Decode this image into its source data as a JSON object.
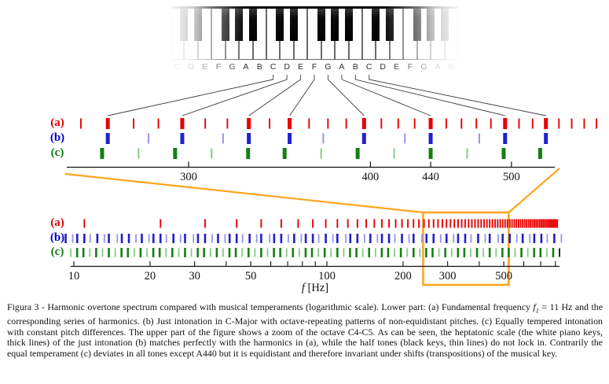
{
  "figure": {
    "keyboard": {
      "letters": [
        "C",
        "D",
        "E",
        "F",
        "G",
        "A",
        "B",
        "C",
        "D",
        "E",
        "F",
        "G",
        "A",
        "B",
        "C",
        "D",
        "E",
        "F",
        "G",
        "A",
        "B"
      ],
      "black_key_positions_in_octave": [
        1,
        2,
        4,
        5,
        6
      ],
      "octaves": 3
    },
    "row_labels": {
      "a": "(a)",
      "b": "(b)",
      "c": "(c)"
    },
    "colors": {
      "harmonic_red": "#e80000",
      "just_blue_thick": "#2020cc",
      "just_blue_thin": "#9595e8",
      "equal_green_thick": "#148014",
      "equal_green_thin": "#84ca84",
      "zoom_box_orange": "#ffa51e",
      "axis_black": "#111111",
      "final_black_tick": "#111111"
    },
    "xlabel_f": "f",
    "xlabel_unit": " [Hz]"
  },
  "chart_data": [
    {
      "panel": "upper_zoom_octave_C4_C5",
      "type": "scatter",
      "x_scale": "log",
      "x_range_hz": [
        247,
        583
      ],
      "x_axis_tick_labels": [
        "300",
        "400",
        "440",
        "500"
      ],
      "x_axis_tick_values": [
        300,
        400,
        440,
        500
      ],
      "series": [
        {
          "name": "(a) harmonics of 11 Hz",
          "values": [
            253,
            264,
            275,
            286,
            297,
            308,
            319,
            330,
            341,
            352,
            363,
            374,
            385,
            396,
            407,
            418,
            429,
            440,
            451,
            462,
            473,
            484,
            495,
            506,
            517,
            528,
            539,
            550,
            561,
            572,
            583
          ],
          "emphasized_white_key_matches": [
            264,
            297,
            330,
            352,
            396,
            440,
            495,
            528
          ]
        },
        {
          "name": "(b) just intonation C-major",
          "white_keys_thick": [
            264,
            297,
            330,
            352,
            396,
            440,
            495,
            528
          ],
          "black_keys_thin": [
            281.6,
            316.8,
            371.25,
            422.4,
            475.2
          ]
        },
        {
          "name": "(c) equal temperament",
          "white_keys_thick": [
            261.63,
            293.66,
            329.63,
            349.23,
            392,
            440,
            493.88,
            523.25
          ],
          "black_keys_thin": [
            277.18,
            311.13,
            369.99,
            415.3,
            466.16
          ]
        }
      ]
    },
    {
      "panel": "lower_full_spectrum",
      "type": "scatter",
      "x_scale": "log",
      "x_range_hz": [
        10,
        818
      ],
      "x_axis_minor_ticks": [
        10,
        20,
        30,
        40,
        50,
        60,
        70,
        80,
        90,
        100,
        200,
        300,
        400,
        500,
        600,
        700,
        800
      ],
      "x_axis_labeled_ticks": [
        10,
        20,
        30,
        50,
        100,
        200,
        300,
        500
      ],
      "x_axis_labels": [
        "10",
        "20",
        "30",
        "50",
        "100",
        "200",
        "300",
        "500"
      ],
      "xlabel": "f [Hz]",
      "zoom_box": {
        "from_hz": 240,
        "to_hz": 523
      },
      "series": [
        {
          "name": "(a) harmonics of fundamental 11 Hz",
          "fundamental_hz": 11,
          "values": [
            11,
            22,
            33,
            44,
            55,
            66,
            77,
            88,
            99,
            110,
            121,
            132,
            143,
            154,
            165,
            176,
            187,
            198,
            209,
            220,
            231,
            242,
            253,
            264,
            275,
            286,
            297,
            308,
            319,
            330,
            341,
            352,
            363,
            374,
            385,
            396,
            407,
            418,
            429,
            440,
            451,
            462,
            473,
            484,
            495,
            506,
            517,
            528,
            539,
            550,
            561,
            572,
            583,
            594,
            605,
            616,
            627,
            638,
            649,
            660,
            671,
            682,
            693,
            704,
            715,
            726,
            737,
            748,
            759,
            770,
            781,
            792,
            803,
            814
          ]
        },
        {
          "name": "(b) just intonation C-major, octave-repeating",
          "white_keys_thick": [
            9.28,
            10.31,
            11,
            12.38,
            13.75,
            15.47,
            16.5,
            18.56,
            20.63,
            22,
            24.75,
            27.5,
            30.94,
            33,
            37.13,
            41.25,
            44,
            49.5,
            55,
            61.88,
            66,
            74.25,
            82.5,
            88,
            99,
            110,
            123.75,
            132,
            148.5,
            165,
            176,
            198,
            220,
            247.5,
            264,
            297,
            330,
            352,
            396,
            440,
            495,
            528,
            594,
            660,
            704,
            792
          ],
          "black_keys_thin": [
            9.9,
            11.6,
            13.2,
            14.85,
            17.6,
            19.8,
            23.2,
            26.4,
            29.7,
            35.2,
            39.6,
            46.41,
            52.8,
            59.4,
            70.4,
            79.2,
            92.81,
            105.6,
            118.8,
            140.8,
            158.4,
            185.63,
            211.2,
            237.6,
            281.6,
            316.8,
            371.25,
            422.4,
            475.2,
            563.2,
            633.6,
            742.5,
            844.8
          ]
        },
        {
          "name": "(c) equal temperament anchored at A440",
          "white_keys_thick": [
            10.3,
            10.91,
            12.25,
            13.75,
            15.43,
            16.35,
            18.35,
            20.6,
            21.83,
            24.5,
            27.5,
            30.87,
            32.7,
            36.71,
            41.2,
            43.65,
            49,
            55,
            61.74,
            65.41,
            73.42,
            82.41,
            87.31,
            98,
            110,
            123.47,
            130.81,
            146.83,
            164.81,
            174.61,
            196,
            220,
            246.94,
            261.63,
            293.66,
            329.63,
            349.23,
            392,
            440,
            493.88,
            523.25,
            587.33,
            659.26,
            698.46,
            783.99
          ],
          "black_keys_thin": [
            9.72,
            11.56,
            12.98,
            14.57,
            17.32,
            19.45,
            23.12,
            25.96,
            29.14,
            34.65,
            38.89,
            46.25,
            51.91,
            58.27,
            69.3,
            77.78,
            92.5,
            103.83,
            116.54,
            138.59,
            155.56,
            185,
            207.65,
            233.08,
            277.18,
            311.13,
            369.99,
            415.3,
            466.16,
            554.37,
            622.25,
            739.99
          ],
          "final_black_tick": 830.61
        }
      ]
    }
  ],
  "caption": {
    "prefix": "Figura 3 - Harmonic overtone spectrum compared with musical temperaments (logarithmic scale).  Lower part:  (a) Fundamental frequency ",
    "f_symbol": "f",
    "f_subscript": "1",
    "suffix": " = 11 Hz and the corresponding series of harmonics. (b) Just intonation in C-Major with octave-repeating patterns of non-equidistant pitches. (c) Equally tempered intonation with constant pitch differences. The upper part of the figure shows a zoom of the octave C4-C5. As can be seen, the heptatonic scale (the white piano keys, thick lines) of the just intonation (b) matches perfectly with the harmonics in (a), while the half tones (black keys, thin lines) do not lock in. Contrarily the equal temperament (c) deviates in all tones except A440 but it is equidistant and therefore invariant under shifts (transpositions) of the musical key."
  }
}
